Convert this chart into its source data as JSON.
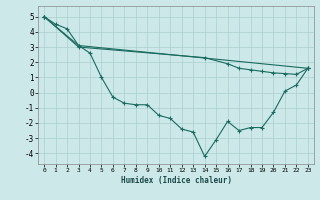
{
  "xlabel": "Humidex (Indice chaleur)",
  "xlim": [
    -0.5,
    23.5
  ],
  "ylim": [
    -4.7,
    5.7
  ],
  "xticks": [
    0,
    1,
    2,
    3,
    4,
    5,
    6,
    7,
    8,
    9,
    10,
    11,
    12,
    13,
    14,
    15,
    16,
    17,
    18,
    19,
    20,
    21,
    22,
    23
  ],
  "yticks": [
    -4,
    -3,
    -2,
    -1,
    0,
    1,
    2,
    3,
    4,
    5
  ],
  "bg_color": "#cce8e8",
  "grid_color": "#aacfcf",
  "line_color": "#1a6b60",
  "line1_x": [
    0,
    1,
    2,
    3,
    4,
    5,
    6,
    7,
    8,
    9,
    10,
    11,
    12,
    13,
    14,
    15,
    16,
    17,
    18,
    19,
    20,
    21,
    22,
    23
  ],
  "line1_y": [
    5.0,
    4.5,
    4.2,
    3.1,
    2.6,
    1.0,
    -0.3,
    -0.7,
    -0.8,
    -0.8,
    -1.5,
    -1.7,
    -2.4,
    -2.6,
    -4.2,
    -3.1,
    -1.9,
    -2.5,
    -2.3,
    -2.3,
    -1.3,
    0.1,
    0.5,
    1.6
  ],
  "line2_x": [
    0,
    3,
    23
  ],
  "line2_y": [
    5.0,
    3.1,
    1.6
  ],
  "line3_x": [
    0,
    3,
    14,
    16,
    17,
    18,
    19,
    20,
    21,
    22,
    23
  ],
  "line3_y": [
    5.0,
    3.0,
    2.3,
    1.9,
    1.6,
    1.5,
    1.4,
    1.3,
    1.25,
    1.2,
    1.6
  ],
  "figsize": [
    3.2,
    2.0
  ],
  "dpi": 100
}
